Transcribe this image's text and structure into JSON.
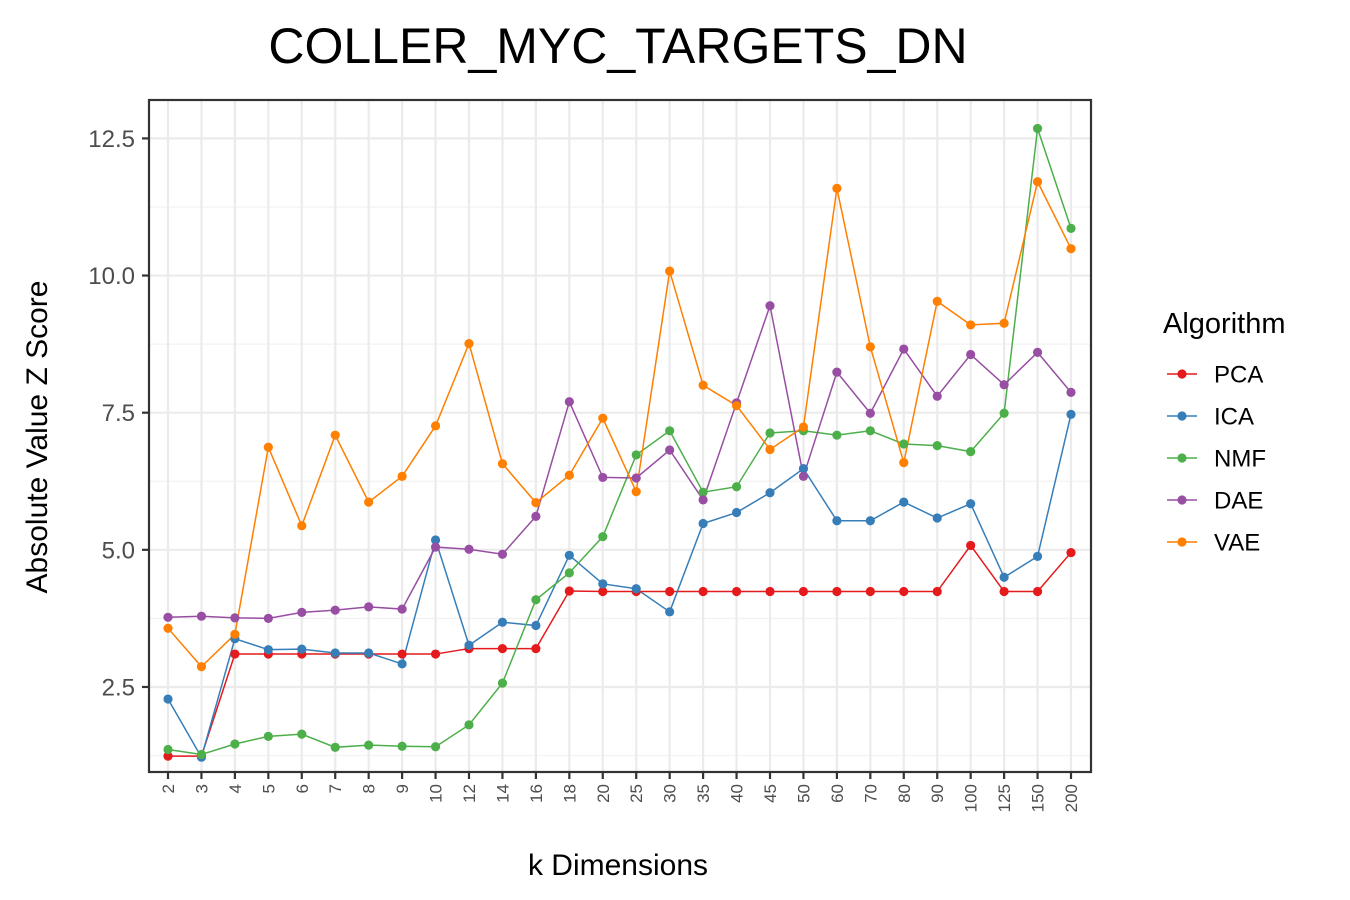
{
  "chart_data": {
    "type": "line",
    "title": "COLLER_MYC_TARGETS_DN",
    "xlabel": "k Dimensions",
    "ylabel": "Absolute Value Z Score",
    "ylim": [
      0.95,
      13.2
    ],
    "yticks": [
      2.5,
      5.0,
      7.5,
      10.0,
      12.5
    ],
    "ytick_labels": [
      "2.5",
      "5.0",
      "7.5",
      "10.0",
      "12.5"
    ],
    "categories": [
      "2",
      "3",
      "4",
      "5",
      "6",
      "7",
      "8",
      "9",
      "10",
      "12",
      "14",
      "16",
      "18",
      "20",
      "25",
      "30",
      "35",
      "40",
      "45",
      "50",
      "60",
      "70",
      "80",
      "90",
      "100",
      "125",
      "150",
      "200"
    ],
    "grid": true,
    "legend": {
      "title": "Algorithm",
      "position": "right"
    },
    "series": [
      {
        "name": "PCA",
        "color": "#e41a1c",
        "values": [
          1.24,
          1.24,
          3.1,
          3.1,
          3.1,
          3.1,
          3.1,
          3.1,
          3.1,
          3.2,
          3.2,
          3.2,
          4.25,
          4.24,
          4.24,
          4.24,
          4.24,
          4.24,
          4.24,
          4.24,
          4.24,
          4.24,
          4.24,
          4.24,
          5.08,
          4.24,
          4.24,
          4.95
        ]
      },
      {
        "name": "ICA",
        "color": "#377eb8",
        "values": [
          2.28,
          1.22,
          3.38,
          3.18,
          3.19,
          3.12,
          3.12,
          2.92,
          5.18,
          3.26,
          3.68,
          3.62,
          4.9,
          4.38,
          4.29,
          3.87,
          5.48,
          5.68,
          6.04,
          6.48,
          5.53,
          5.53,
          5.87,
          5.58,
          5.84,
          4.5,
          4.88,
          7.47
        ]
      },
      {
        "name": "NMF",
        "color": "#4daf4a",
        "values": [
          1.36,
          1.27,
          1.46,
          1.6,
          1.64,
          1.4,
          1.44,
          1.42,
          1.41,
          1.81,
          2.57,
          4.09,
          4.58,
          5.24,
          6.73,
          7.17,
          6.05,
          6.15,
          7.13,
          7.17,
          7.09,
          7.17,
          6.93,
          6.9,
          6.79,
          7.49,
          12.68,
          10.86
        ]
      },
      {
        "name": "DAE",
        "color": "#984ea3",
        "values": [
          3.77,
          3.79,
          3.76,
          3.75,
          3.86,
          3.9,
          3.96,
          3.92,
          5.05,
          5.01,
          4.92,
          5.61,
          7.7,
          6.32,
          6.31,
          6.82,
          5.91,
          7.68,
          9.45,
          6.34,
          8.24,
          7.49,
          8.66,
          7.8,
          8.56,
          8.01,
          8.6,
          7.87
        ]
      },
      {
        "name": "VAE",
        "color": "#ff7f00",
        "values": [
          3.57,
          2.87,
          3.46,
          6.87,
          5.44,
          7.09,
          5.87,
          6.34,
          7.26,
          8.76,
          6.57,
          5.86,
          6.36,
          7.4,
          6.06,
          10.08,
          8.0,
          7.63,
          6.83,
          7.24,
          11.59,
          8.7,
          6.59,
          9.53,
          9.1,
          9.13,
          11.71,
          10.49
        ]
      }
    ]
  }
}
